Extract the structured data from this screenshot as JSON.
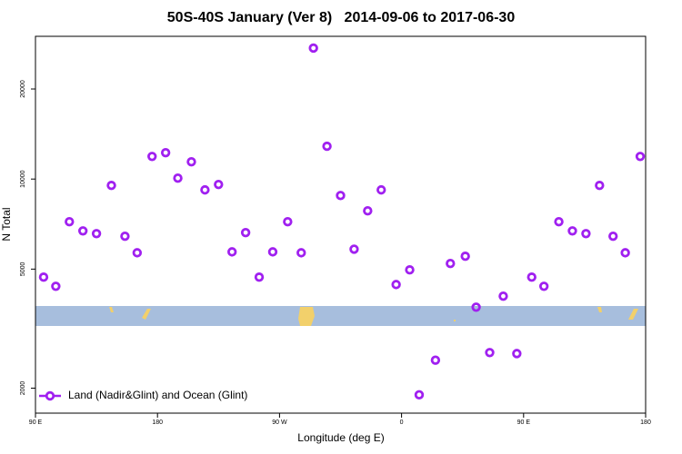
{
  "chart_data": {
    "type": "scatter",
    "title": "50S-40S January (Ver 8)   2014-09-06 to 2017-06-30",
    "x_label": "Longitude (deg E)",
    "y_label": "N Total",
    "x": [
      96,
      105,
      115,
      125,
      135,
      146,
      156,
      165,
      176,
      186,
      195,
      205,
      215,
      225,
      235,
      245,
      255,
      265,
      276,
      286,
      295,
      305,
      315,
      325,
      335,
      345,
      356,
      366,
      373,
      385,
      396,
      407,
      415,
      425,
      435,
      445,
      456,
      465,
      476,
      486,
      496,
      506,
      516,
      525,
      536
    ],
    "series": [
      {
        "name": "Land (Nadir&Glint) and Ocean (Glint)",
        "color": "#a020f0",
        "values": [
          4700,
          4380,
          7200,
          6710,
          6570,
          9520,
          6440,
          5670,
          11900,
          12250,
          10070,
          11420,
          9200,
          9590,
          5710,
          6620,
          4700,
          5710,
          7200,
          5670,
          27400,
          12870,
          8810,
          5830,
          7830,
          9200,
          4440,
          4970,
          1900,
          2480,
          5220,
          5520,
          3730,
          2630,
          4060,
          2610,
          4700,
          4380,
          7200,
          6710,
          6570,
          9520,
          6440,
          5670,
          11900
        ]
      }
    ],
    "xlim": [
      90,
      540
    ],
    "ylim": [
      1650,
      30000
    ],
    "log_y": true,
    "xticks": [
      {
        "value": 90,
        "label": "90 E"
      },
      180,
      {
        "value": 270,
        "label": "90 W"
      },
      {
        "value": 360,
        "label": "0"
      },
      {
        "value": 450,
        "label": "90 E"
      },
      {
        "value": 540,
        "label": "180"
      }
    ],
    "yticks": [
      2000,
      5000,
      10000,
      20000
    ],
    "legend": "bottomleft"
  }
}
